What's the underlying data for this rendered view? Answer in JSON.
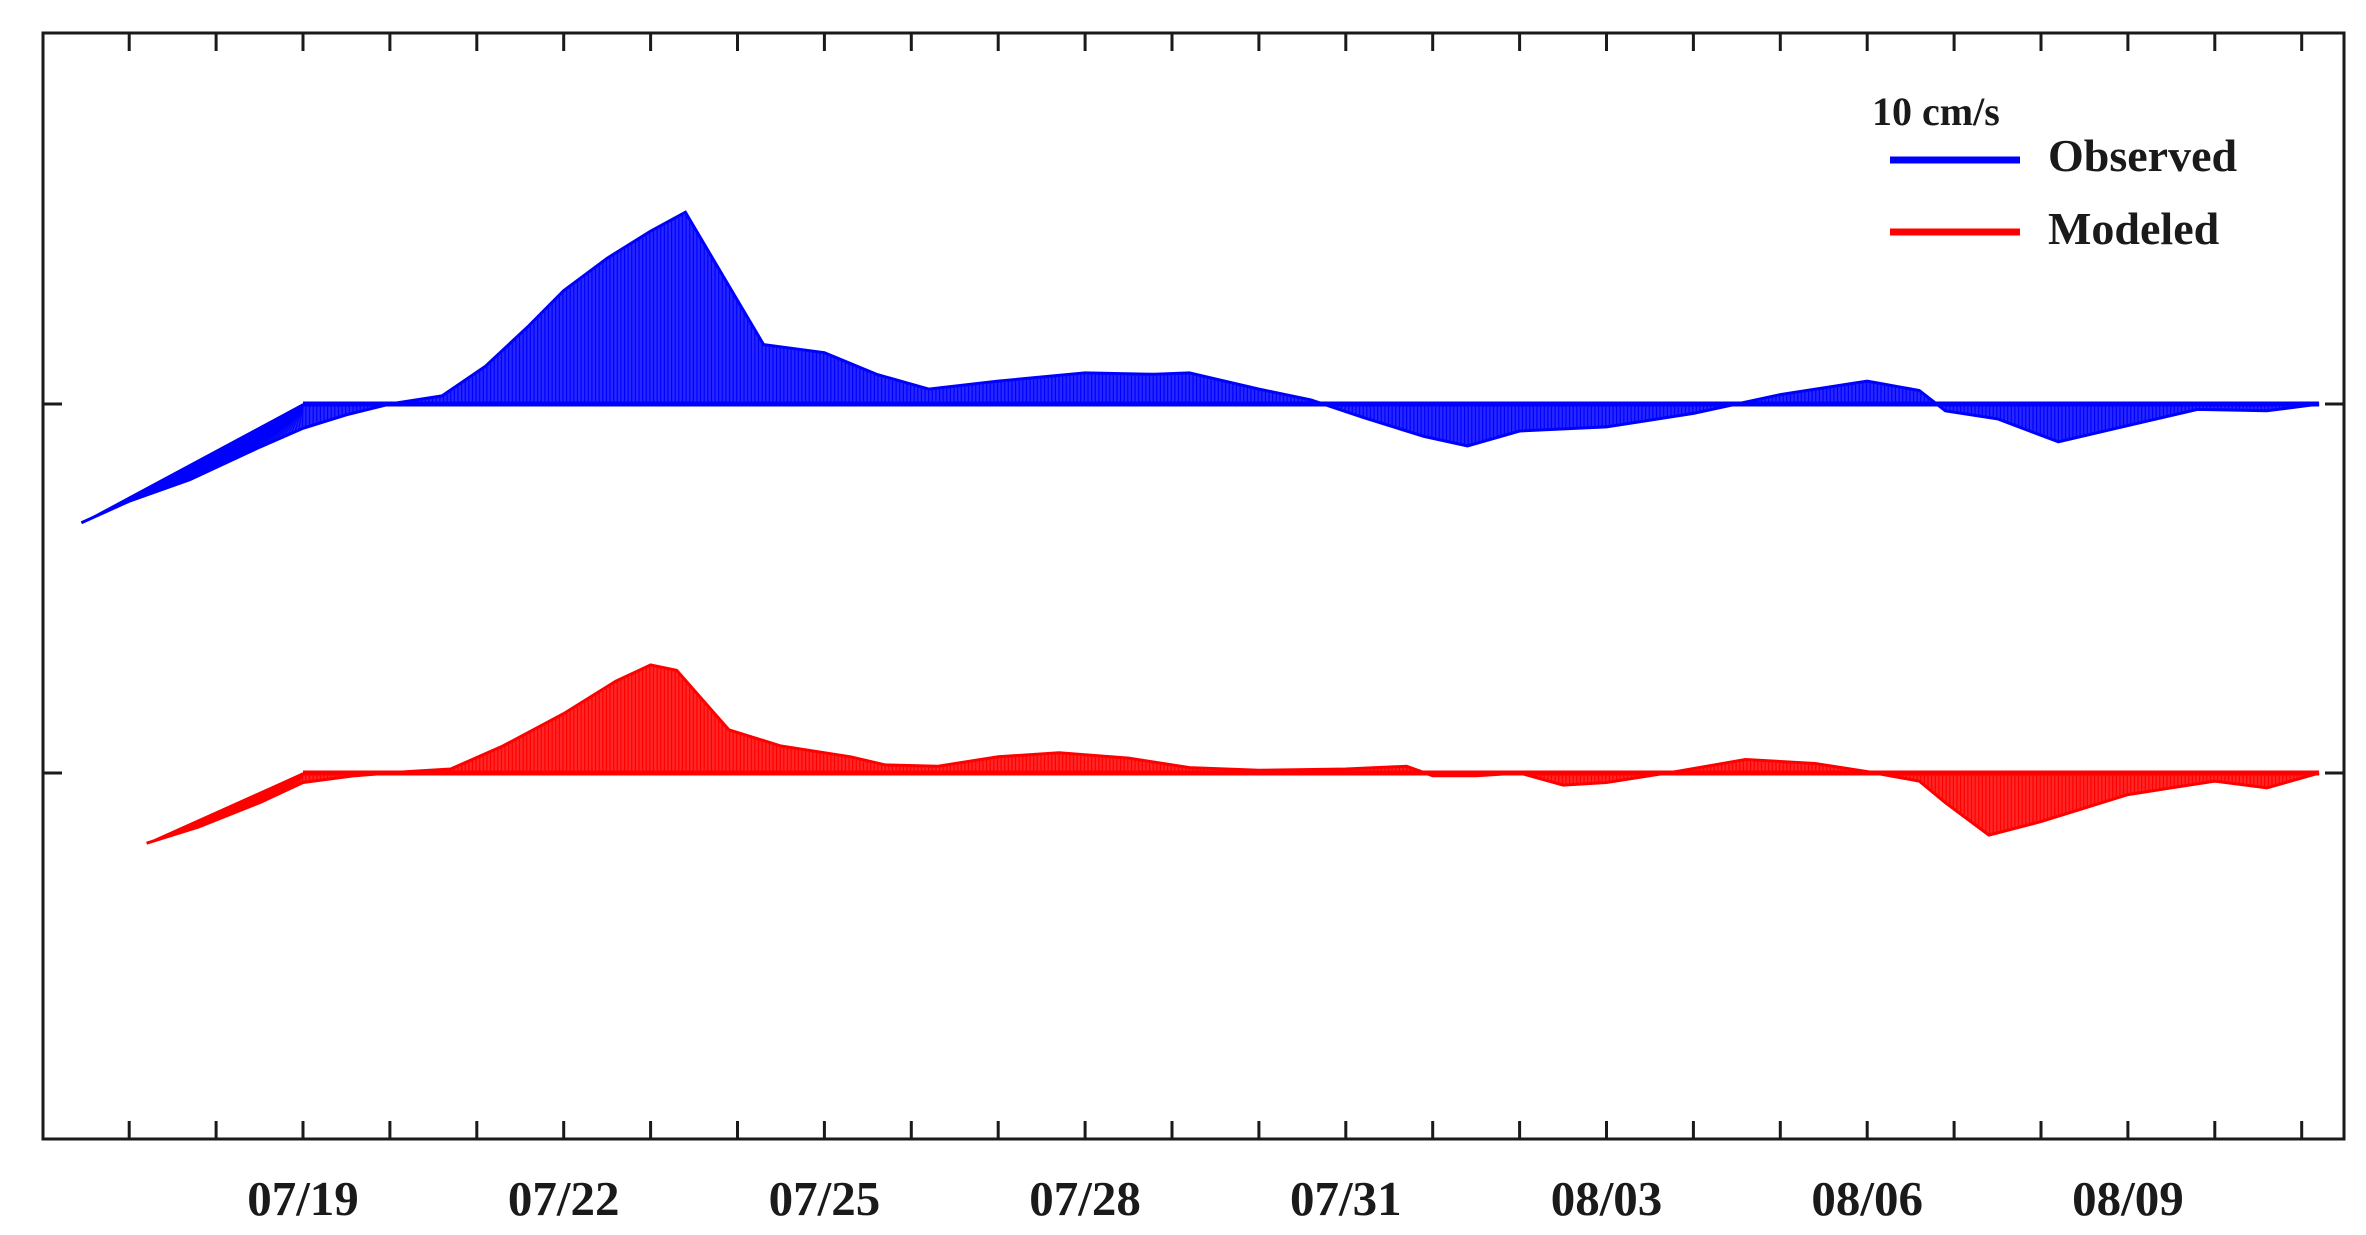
{
  "chart_data": {
    "type": "stick_plot",
    "x_ticks": [
      "07/19",
      "07/22",
      "07/25",
      "07/28",
      "07/31",
      "08/03",
      "08/06",
      "08/09"
    ],
    "x_tick_day_index": [
      0,
      3,
      6,
      9,
      12,
      15,
      18,
      21
    ],
    "x_range_day_index": [
      -3.0,
      23.3
    ],
    "scale_label": "10 cm/s",
    "legend_position": "top-right",
    "legend": [
      {
        "name": "Observed",
        "color": "#0000ff"
      },
      {
        "name": "Modeled",
        "color": "#ff0000"
      }
    ],
    "series": [
      {
        "name": "Observed",
        "color": "#0000ff",
        "tip_points": [
          [
            -2.55,
            -4.4
          ],
          [
            -2.0,
            -3.6
          ],
          [
            -1.3,
            -2.8
          ],
          [
            -0.5,
            -1.6
          ],
          [
            0.0,
            -0.9
          ],
          [
            0.5,
            -0.4
          ],
          [
            1.0,
            0.0
          ],
          [
            1.6,
            0.3
          ],
          [
            2.1,
            1.4
          ],
          [
            2.6,
            2.9
          ],
          [
            3.0,
            4.2
          ],
          [
            3.5,
            5.4
          ],
          [
            4.0,
            6.4
          ],
          [
            4.4,
            7.1
          ],
          [
            5.3,
            2.2
          ],
          [
            6.0,
            1.9
          ],
          [
            6.6,
            1.1
          ],
          [
            7.2,
            0.55
          ],
          [
            8.0,
            0.85
          ],
          [
            9.0,
            1.15
          ],
          [
            9.8,
            1.1
          ],
          [
            10.2,
            1.15
          ],
          [
            11.0,
            0.55
          ],
          [
            11.6,
            0.15
          ],
          [
            12.2,
            -0.5
          ],
          [
            12.9,
            -1.2
          ],
          [
            13.4,
            -1.55
          ],
          [
            14.0,
            -1.0
          ],
          [
            15.0,
            -0.85
          ],
          [
            16.0,
            -0.35
          ],
          [
            17.0,
            0.35
          ],
          [
            18.0,
            0.85
          ],
          [
            18.6,
            0.5
          ],
          [
            18.9,
            -0.25
          ],
          [
            19.5,
            -0.55
          ],
          [
            20.2,
            -1.4
          ],
          [
            21.0,
            -0.8
          ],
          [
            21.8,
            -0.2
          ],
          [
            22.6,
            -0.25
          ],
          [
            23.2,
            0.0
          ]
        ]
      },
      {
        "name": "Modeled",
        "color": "#ff0000",
        "tip_points": [
          [
            -1.8,
            -2.6
          ],
          [
            -1.2,
            -2.0
          ],
          [
            -0.5,
            -1.1
          ],
          [
            0.0,
            -0.35
          ],
          [
            0.6,
            -0.1
          ],
          [
            1.2,
            0.05
          ],
          [
            1.7,
            0.15
          ],
          [
            2.3,
            1.0
          ],
          [
            3.0,
            2.2
          ],
          [
            3.6,
            3.4
          ],
          [
            4.0,
            4.0
          ],
          [
            4.3,
            3.8
          ],
          [
            4.9,
            1.6
          ],
          [
            5.5,
            1.0
          ],
          [
            6.3,
            0.6
          ],
          [
            6.7,
            0.3
          ],
          [
            7.3,
            0.25
          ],
          [
            8.0,
            0.6
          ],
          [
            8.7,
            0.75
          ],
          [
            9.5,
            0.55
          ],
          [
            10.2,
            0.2
          ],
          [
            11.0,
            0.1
          ],
          [
            12.0,
            0.15
          ],
          [
            12.7,
            0.25
          ],
          [
            13.0,
            -0.1
          ],
          [
            13.5,
            -0.1
          ],
          [
            14.0,
            0.0
          ],
          [
            14.5,
            -0.45
          ],
          [
            15.0,
            -0.35
          ],
          [
            15.8,
            0.05
          ],
          [
            16.6,
            0.5
          ],
          [
            17.4,
            0.35
          ],
          [
            18.0,
            0.05
          ],
          [
            18.6,
            -0.3
          ],
          [
            18.9,
            -1.1
          ],
          [
            19.4,
            -2.3
          ],
          [
            20.0,
            -1.8
          ],
          [
            21.0,
            -0.8
          ],
          [
            22.0,
            -0.3
          ],
          [
            22.6,
            -0.55
          ],
          [
            23.2,
            0.0
          ]
        ]
      }
    ]
  }
}
